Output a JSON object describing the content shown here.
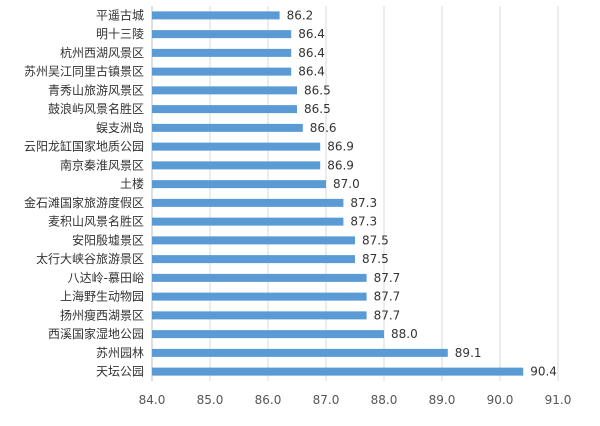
{
  "chart_data": {
    "type": "bar",
    "orientation": "horizontal",
    "categories": [
      "平遥古城",
      "明十三陵",
      "杭州西湖风景区",
      "苏州吴江同里古镇景区",
      "青秀山旅游风景区",
      "鼓浪屿风景名胜区",
      "蜈支洲岛",
      "云阳龙缸国家地质公园",
      "南京秦淮风景区",
      "土楼",
      "金石滩国家旅游度假区",
      "麦积山风景名胜区",
      "安阳殷墟景区",
      "太行大峡谷旅游景区",
      "八达岭-慕田峪",
      "上海野生动物园",
      "扬州瘦西湖景区",
      "西溪国家湿地公园",
      "苏州园林",
      "天坛公园"
    ],
    "values": [
      86.2,
      86.4,
      86.4,
      86.4,
      86.5,
      86.5,
      86.6,
      86.9,
      86.9,
      87.0,
      87.3,
      87.3,
      87.5,
      87.5,
      87.7,
      87.7,
      87.7,
      88.0,
      89.1,
      90.4
    ],
    "value_labels": [
      "86.2",
      "86.4",
      "86.4",
      "86.4",
      "86.5",
      "86.5",
      "86.6",
      "86.9",
      "86.9",
      "87.0",
      "87.3",
      "87.3",
      "87.5",
      "87.5",
      "87.7",
      "87.7",
      "87.7",
      "88.0",
      "89.1",
      "90.4"
    ],
    "xlim": [
      84.0,
      91.0
    ],
    "x_ticks": [
      "84.0",
      "85.0",
      "86.0",
      "87.0",
      "88.0",
      "89.0",
      "90.0",
      "91.0"
    ],
    "title": "",
    "xlabel": "",
    "ylabel": "",
    "grid": "vertical",
    "legend": "none",
    "bar_color": "#5b9bd5",
    "grid_color": "#d9d9d9",
    "text_color": "#333333"
  }
}
